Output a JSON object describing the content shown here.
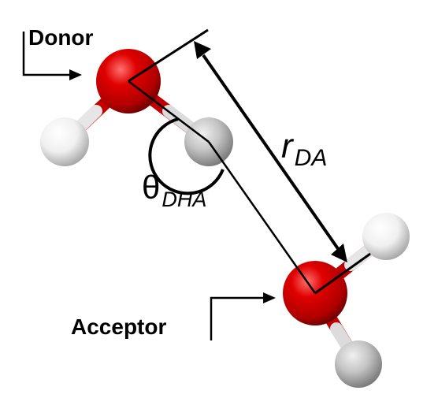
{
  "labels": {
    "donor": "Donor",
    "acceptor": "Acceptor",
    "distance_symbol": "r",
    "distance_subscript": "DA",
    "angle_symbol": "θ",
    "angle_subscript": "DHA"
  },
  "colors": {
    "oxygen": "#d40000",
    "hydrogen_white": "#f5f5f5",
    "hydrogen_gray": "#bdbdbd",
    "line": "#000000"
  }
}
